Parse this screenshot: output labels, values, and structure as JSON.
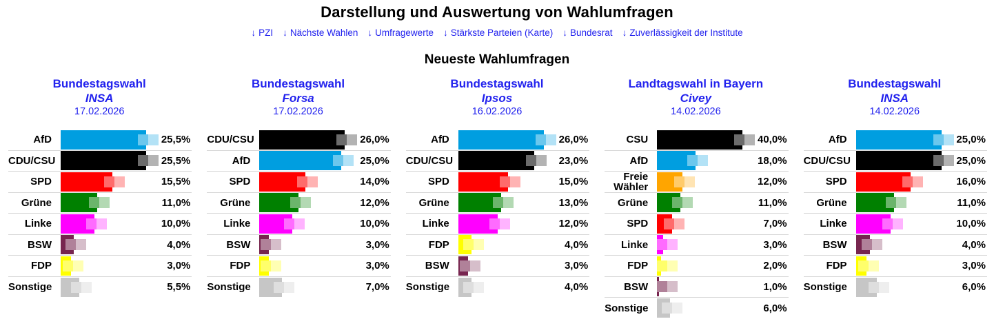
{
  "page": {
    "title": "Darstellung und Auswertung von Wahlumfragen",
    "subtitle": "Neueste Wahlumfragen",
    "nav_links": [
      {
        "arrow": "↓",
        "label": "PZI"
      },
      {
        "arrow": "↓",
        "label": "Nächste Wahlen"
      },
      {
        "arrow": "↓",
        "label": "Umfragewerte"
      },
      {
        "arrow": "↓",
        "label": "Stärkste Parteien (Karte)"
      },
      {
        "arrow": "↓",
        "label": "Bundesrat"
      },
      {
        "arrow": "↓",
        "label": "Zuverlässigkeit der Institute"
      }
    ],
    "accent_blue": "#2222ee",
    "separator_color": "#d6d6d6"
  },
  "party_colors": {
    "AfD": "#009ee0",
    "CDU/CSU": "#000000",
    "CSU": "#000000",
    "SPD": "#ff0000",
    "Grüne": "#008000",
    "Linke": "#ff00ff",
    "BSW": "#77254f",
    "FDP": "#ffff00",
    "Freie Wähler": "#ffa500",
    "Sonstige": "#c6c6c6"
  },
  "chart_data": [
    {
      "type": "bar",
      "title": "Bundestagswahl",
      "institute": "INSA",
      "date": "17.02.2026",
      "categories": [
        "AfD",
        "CDU/CSU",
        "SPD",
        "Grüne",
        "Linke",
        "BSW",
        "FDP",
        "Sonstige"
      ],
      "values": [
        25.5,
        25.5,
        15.5,
        11.0,
        10.0,
        4.0,
        3.0,
        5.5
      ],
      "value_labels": [
        "25,5%",
        "25,5%",
        "15,5%",
        "11,0%",
        "10,0%",
        "4,0%",
        "3,0%",
        "5,5%"
      ],
      "xlim_max_bar": 25.5
    },
    {
      "type": "bar",
      "title": "Bundestagswahl",
      "institute": "Forsa",
      "date": "17.02.2026",
      "categories": [
        "CDU/CSU",
        "AfD",
        "SPD",
        "Grüne",
        "Linke",
        "BSW",
        "FDP",
        "Sonstige"
      ],
      "values": [
        26.0,
        25.0,
        14.0,
        12.0,
        10.0,
        3.0,
        3.0,
        7.0
      ],
      "value_labels": [
        "26,0%",
        "25,0%",
        "14,0%",
        "12,0%",
        "10,0%",
        "3,0%",
        "3,0%",
        "7,0%"
      ],
      "xlim_max_bar": 26.0
    },
    {
      "type": "bar",
      "title": "Bundestagswahl",
      "institute": "Ipsos",
      "date": "16.02.2026",
      "categories": [
        "AfD",
        "CDU/CSU",
        "SPD",
        "Grüne",
        "Linke",
        "FDP",
        "BSW",
        "Sonstige"
      ],
      "values": [
        26.0,
        23.0,
        15.0,
        13.0,
        12.0,
        4.0,
        3.0,
        4.0
      ],
      "value_labels": [
        "26,0%",
        "23,0%",
        "15,0%",
        "13,0%",
        "12,0%",
        "4,0%",
        "3,0%",
        "4,0%"
      ],
      "xlim_max_bar": 26.0
    },
    {
      "type": "bar",
      "title": "Landtagswahl in Bayern",
      "institute": "Civey",
      "date": "14.02.2026",
      "categories": [
        "CSU",
        "AfD",
        "Freie Wähler",
        "Grüne",
        "SPD",
        "Linke",
        "FDP",
        "BSW",
        "Sonstige"
      ],
      "values": [
        40.0,
        18.0,
        12.0,
        11.0,
        7.0,
        3.0,
        2.0,
        1.0,
        6.0
      ],
      "value_labels": [
        "40,0%",
        "18,0%",
        "12,0%",
        "11,0%",
        "7,0%",
        "3,0%",
        "2,0%",
        "1,0%",
        "6,0%"
      ],
      "xlim_max_bar": 40.0
    },
    {
      "type": "bar",
      "title": "Bundestagswahl",
      "institute": "INSA",
      "date": "14.02.2026",
      "categories": [
        "AfD",
        "CDU/CSU",
        "SPD",
        "Grüne",
        "Linke",
        "BSW",
        "FDP",
        "Sonstige"
      ],
      "values": [
        25.0,
        25.0,
        16.0,
        11.0,
        10.0,
        4.0,
        3.0,
        6.0
      ],
      "value_labels": [
        "25,0%",
        "25,0%",
        "16,0%",
        "11,0%",
        "10,0%",
        "4,0%",
        "3,0%",
        "6,0%"
      ],
      "xlim_max_bar": 25.0
    }
  ]
}
